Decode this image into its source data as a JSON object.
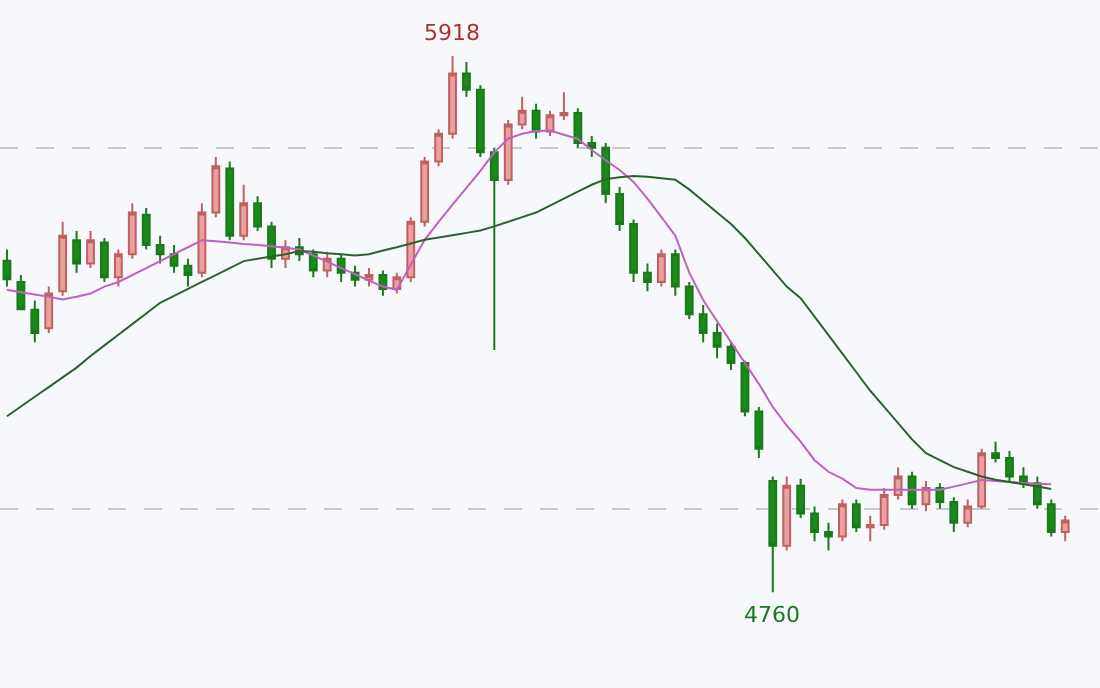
{
  "chart_data": {
    "type": "candlestick",
    "categories": [
      null,
      null,
      null,
      null,
      null,
      null,
      null,
      null,
      null,
      null,
      null,
      null,
      null,
      null,
      null,
      null,
      null,
      null,
      null,
      null,
      null,
      null,
      null,
      null,
      null,
      null,
      null,
      null,
      null,
      null,
      null,
      null,
      null,
      null,
      null,
      null,
      null,
      null,
      null,
      null,
      null,
      null,
      null,
      null,
      null,
      null,
      null,
      null,
      null,
      null,
      null,
      null,
      null,
      null,
      null,
      null,
      null,
      null,
      null,
      null,
      null,
      null,
      null,
      null,
      null,
      null,
      null,
      null,
      null,
      null,
      null,
      null,
      null,
      null,
      null,
      null,
      null
    ],
    "ohlc": [
      [
        5476,
        5500,
        5420,
        5436
      ],
      [
        5430,
        5445,
        5370,
        5371
      ],
      [
        5370,
        5390,
        5300,
        5320
      ],
      [
        5330,
        5420,
        5320,
        5405
      ],
      [
        5410,
        5560,
        5400,
        5530
      ],
      [
        5520,
        5540,
        5450,
        5470
      ],
      [
        5470,
        5540,
        5460,
        5520
      ],
      [
        5515,
        5525,
        5430,
        5440
      ],
      [
        5440,
        5500,
        5420,
        5490
      ],
      [
        5490,
        5600,
        5480,
        5580
      ],
      [
        5575,
        5590,
        5500,
        5510
      ],
      [
        5510,
        5530,
        5470,
        5490
      ],
      [
        5490,
        5510,
        5450,
        5465
      ],
      [
        5465,
        5480,
        5420,
        5445
      ],
      [
        5450,
        5600,
        5440,
        5580
      ],
      [
        5580,
        5700,
        5570,
        5680
      ],
      [
        5675,
        5690,
        5520,
        5530
      ],
      [
        5530,
        5640,
        5520,
        5600
      ],
      [
        5600,
        5615,
        5540,
        5550
      ],
      [
        5550,
        5560,
        5460,
        5480
      ],
      [
        5480,
        5520,
        5460,
        5505
      ],
      [
        5505,
        5525,
        5475,
        5490
      ],
      [
        5490,
        5500,
        5440,
        5455
      ],
      [
        5455,
        5495,
        5440,
        5480
      ],
      [
        5480,
        5490,
        5430,
        5450
      ],
      [
        5450,
        5465,
        5420,
        5435
      ],
      [
        5435,
        5460,
        5420,
        5445
      ],
      [
        5445,
        5455,
        5400,
        5415
      ],
      [
        5415,
        5450,
        5405,
        5440
      ],
      [
        5440,
        5570,
        5430,
        5560
      ],
      [
        5560,
        5700,
        5550,
        5690
      ],
      [
        5690,
        5760,
        5680,
        5750
      ],
      [
        5750,
        5918,
        5740,
        5880
      ],
      [
        5880,
        5905,
        5830,
        5845
      ],
      [
        5845,
        5855,
        5700,
        5710
      ],
      [
        5710,
        5720,
        5283,
        5650
      ],
      [
        5650,
        5780,
        5640,
        5770
      ],
      [
        5770,
        5830,
        5760,
        5800
      ],
      [
        5800,
        5815,
        5740,
        5755
      ],
      [
        5755,
        5800,
        5745,
        5790
      ],
      [
        5790,
        5840,
        5780,
        5795
      ],
      [
        5795,
        5805,
        5720,
        5730
      ],
      [
        5730,
        5745,
        5700,
        5720
      ],
      [
        5720,
        5730,
        5600,
        5620
      ],
      [
        5620,
        5635,
        5540,
        5555
      ],
      [
        5555,
        5565,
        5430,
        5450
      ],
      [
        5450,
        5470,
        5410,
        5430
      ],
      [
        5430,
        5500,
        5420,
        5490
      ],
      [
        5490,
        5500,
        5400,
        5420
      ],
      [
        5420,
        5430,
        5350,
        5360
      ],
      [
        5360,
        5380,
        5300,
        5320
      ],
      [
        5320,
        5340,
        5265,
        5290
      ],
      [
        5290,
        5300,
        5240,
        5255
      ],
      [
        5255,
        5260,
        5140,
        5150
      ],
      [
        5150,
        5160,
        5050,
        5070
      ],
      [
        5000,
        5010,
        4760,
        4860
      ],
      [
        4860,
        5010,
        4850,
        4990
      ],
      [
        4990,
        5005,
        4920,
        4930
      ],
      [
        4930,
        4945,
        4870,
        4890
      ],
      [
        4890,
        4910,
        4850,
        4880
      ],
      [
        4880,
        4960,
        4870,
        4950
      ],
      [
        4950,
        4960,
        4890,
        4900
      ],
      [
        4900,
        4925,
        4870,
        4905
      ],
      [
        4905,
        4985,
        4895,
        4970
      ],
      [
        4970,
        5030,
        4960,
        5010
      ],
      [
        5010,
        5020,
        4940,
        4950
      ],
      [
        4950,
        5000,
        4935,
        4985
      ],
      [
        4985,
        4995,
        4940,
        4955
      ],
      [
        4955,
        4965,
        4890,
        4910
      ],
      [
        4910,
        4960,
        4900,
        4945
      ],
      [
        4945,
        5070,
        4940,
        5060
      ],
      [
        5060,
        5085,
        5040,
        5050
      ],
      [
        5050,
        5065,
        5000,
        5010
      ],
      [
        5010,
        5030,
        4985,
        4995
      ],
      [
        4995,
        5010,
        4940,
        4950
      ],
      [
        4950,
        4960,
        4880,
        4890
      ],
      [
        4890,
        4925,
        4870,
        4915
      ]
    ],
    "series": [
      {
        "type": "line",
        "color": "#c060c0",
        "values": [
          5413,
          5408,
          5403,
          5398,
          5392,
          5398,
          5405,
          5420,
          5430,
          5445,
          5460,
          5475,
          5490,
          5505,
          5520,
          5518,
          5515,
          5512,
          5510,
          5507,
          5504,
          5500,
          5487,
          5474,
          5460,
          5447,
          5433,
          5420,
          5413,
          5467,
          5521,
          5560,
          5597,
          5633,
          5670,
          5710,
          5740,
          5750,
          5756,
          5757,
          5748,
          5739,
          5715,
          5693,
          5672,
          5646,
          5610,
          5570,
          5530,
          5450,
          5391,
          5345,
          5300,
          5255,
          5210,
          5160,
          5120,
          5085,
          5045,
          5020,
          5005,
          4985,
          4981,
          4981,
          4981,
          4981,
          4981,
          4981,
          4988,
          4995,
          5002,
          5000,
          4998,
          4996,
          4994,
          4993,
          null
        ]
      },
      {
        "type": "line",
        "color": "#306030",
        "values": [
          5140,
          5161,
          5182,
          5203,
          5224,
          5245,
          5270,
          5293,
          5316,
          5339,
          5362,
          5385,
          5400,
          5415,
          5430,
          5445,
          5460,
          5475,
          5480,
          5485,
          5490,
          5497,
          5495,
          5492,
          5490,
          5487,
          5490,
          5498,
          5505,
          5513,
          5521,
          5526,
          5531,
          5536,
          5541,
          5550,
          5560,
          5570,
          5580,
          5595,
          5610,
          5625,
          5640,
          5652,
          5656,
          5659,
          5657,
          5654,
          5651,
          5630,
          5605,
          5580,
          5555,
          5525,
          5490,
          5455,
          5420,
          5395,
          5355,
          5315,
          5275,
          5235,
          5195,
          5160,
          5125,
          5090,
          5060,
          5045,
          5030,
          5020,
          5010,
          5003,
          4998,
          4993,
          4988,
          4983,
          null
        ]
      }
    ],
    "annotations": [
      "5918",
      "4760"
    ],
    "ylim": [
      4553,
      6039
    ],
    "yticks": [
      {
        "value": 5720,
        "label": null
      },
      {
        "value": 4940,
        "label": null
      }
    ],
    "grid": "y",
    "tick_labels": false,
    "legend": false
  }
}
